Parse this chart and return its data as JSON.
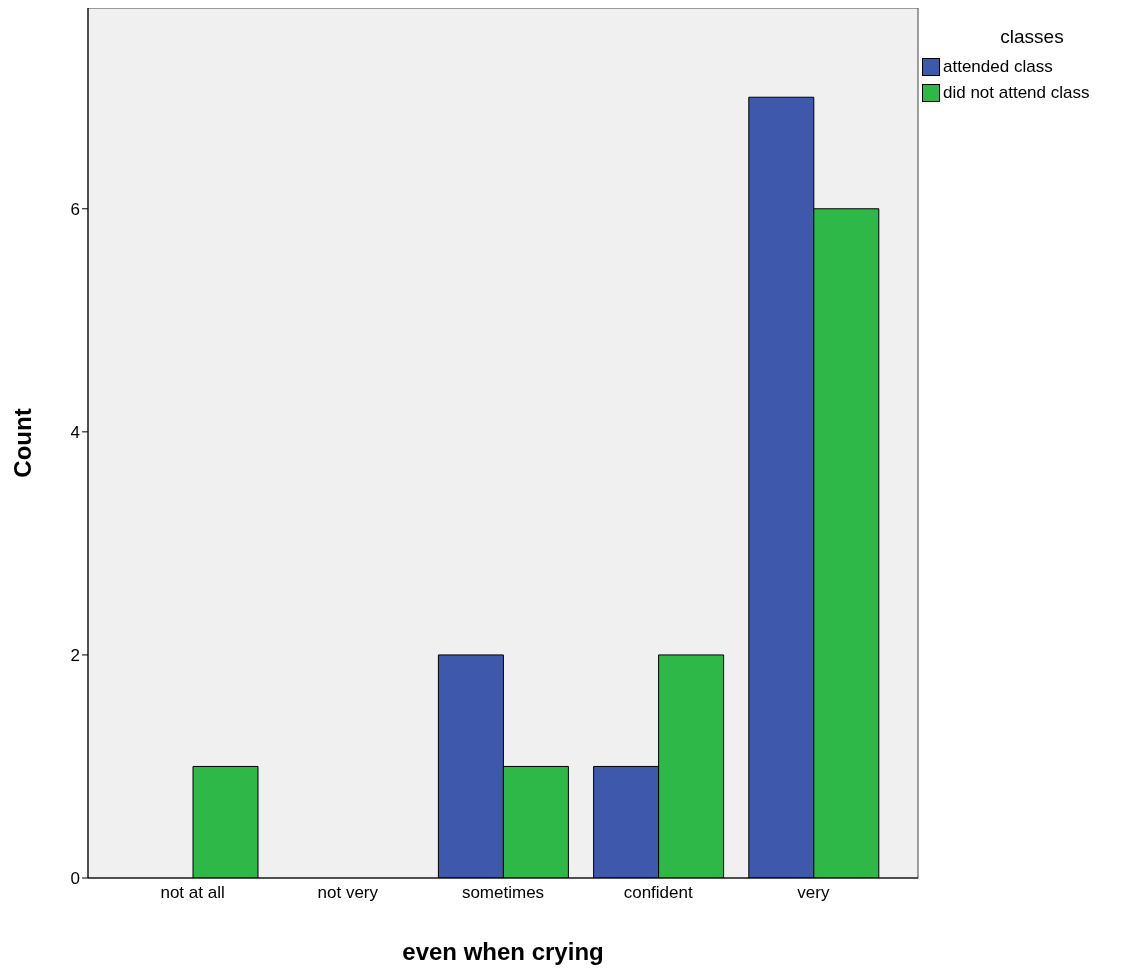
{
  "chart_data": {
    "type": "bar",
    "xlabel": "even when crying",
    "ylabel": "Count",
    "legend_title": "classes",
    "categories": [
      "not at all",
      "not very",
      "sometimes",
      "confident",
      "very"
    ],
    "series": [
      {
        "name": "attended class",
        "color": "#3e58ac",
        "values": [
          0,
          0,
          2,
          1,
          7
        ]
      },
      {
        "name": "did not attend class",
        "color": "#2eb847",
        "values": [
          1,
          0,
          1,
          2,
          6
        ]
      }
    ],
    "ylim": [
      0,
      7.8
    ],
    "yticks": [
      0,
      2,
      4,
      6
    ],
    "grid": false,
    "legend": "top right"
  }
}
